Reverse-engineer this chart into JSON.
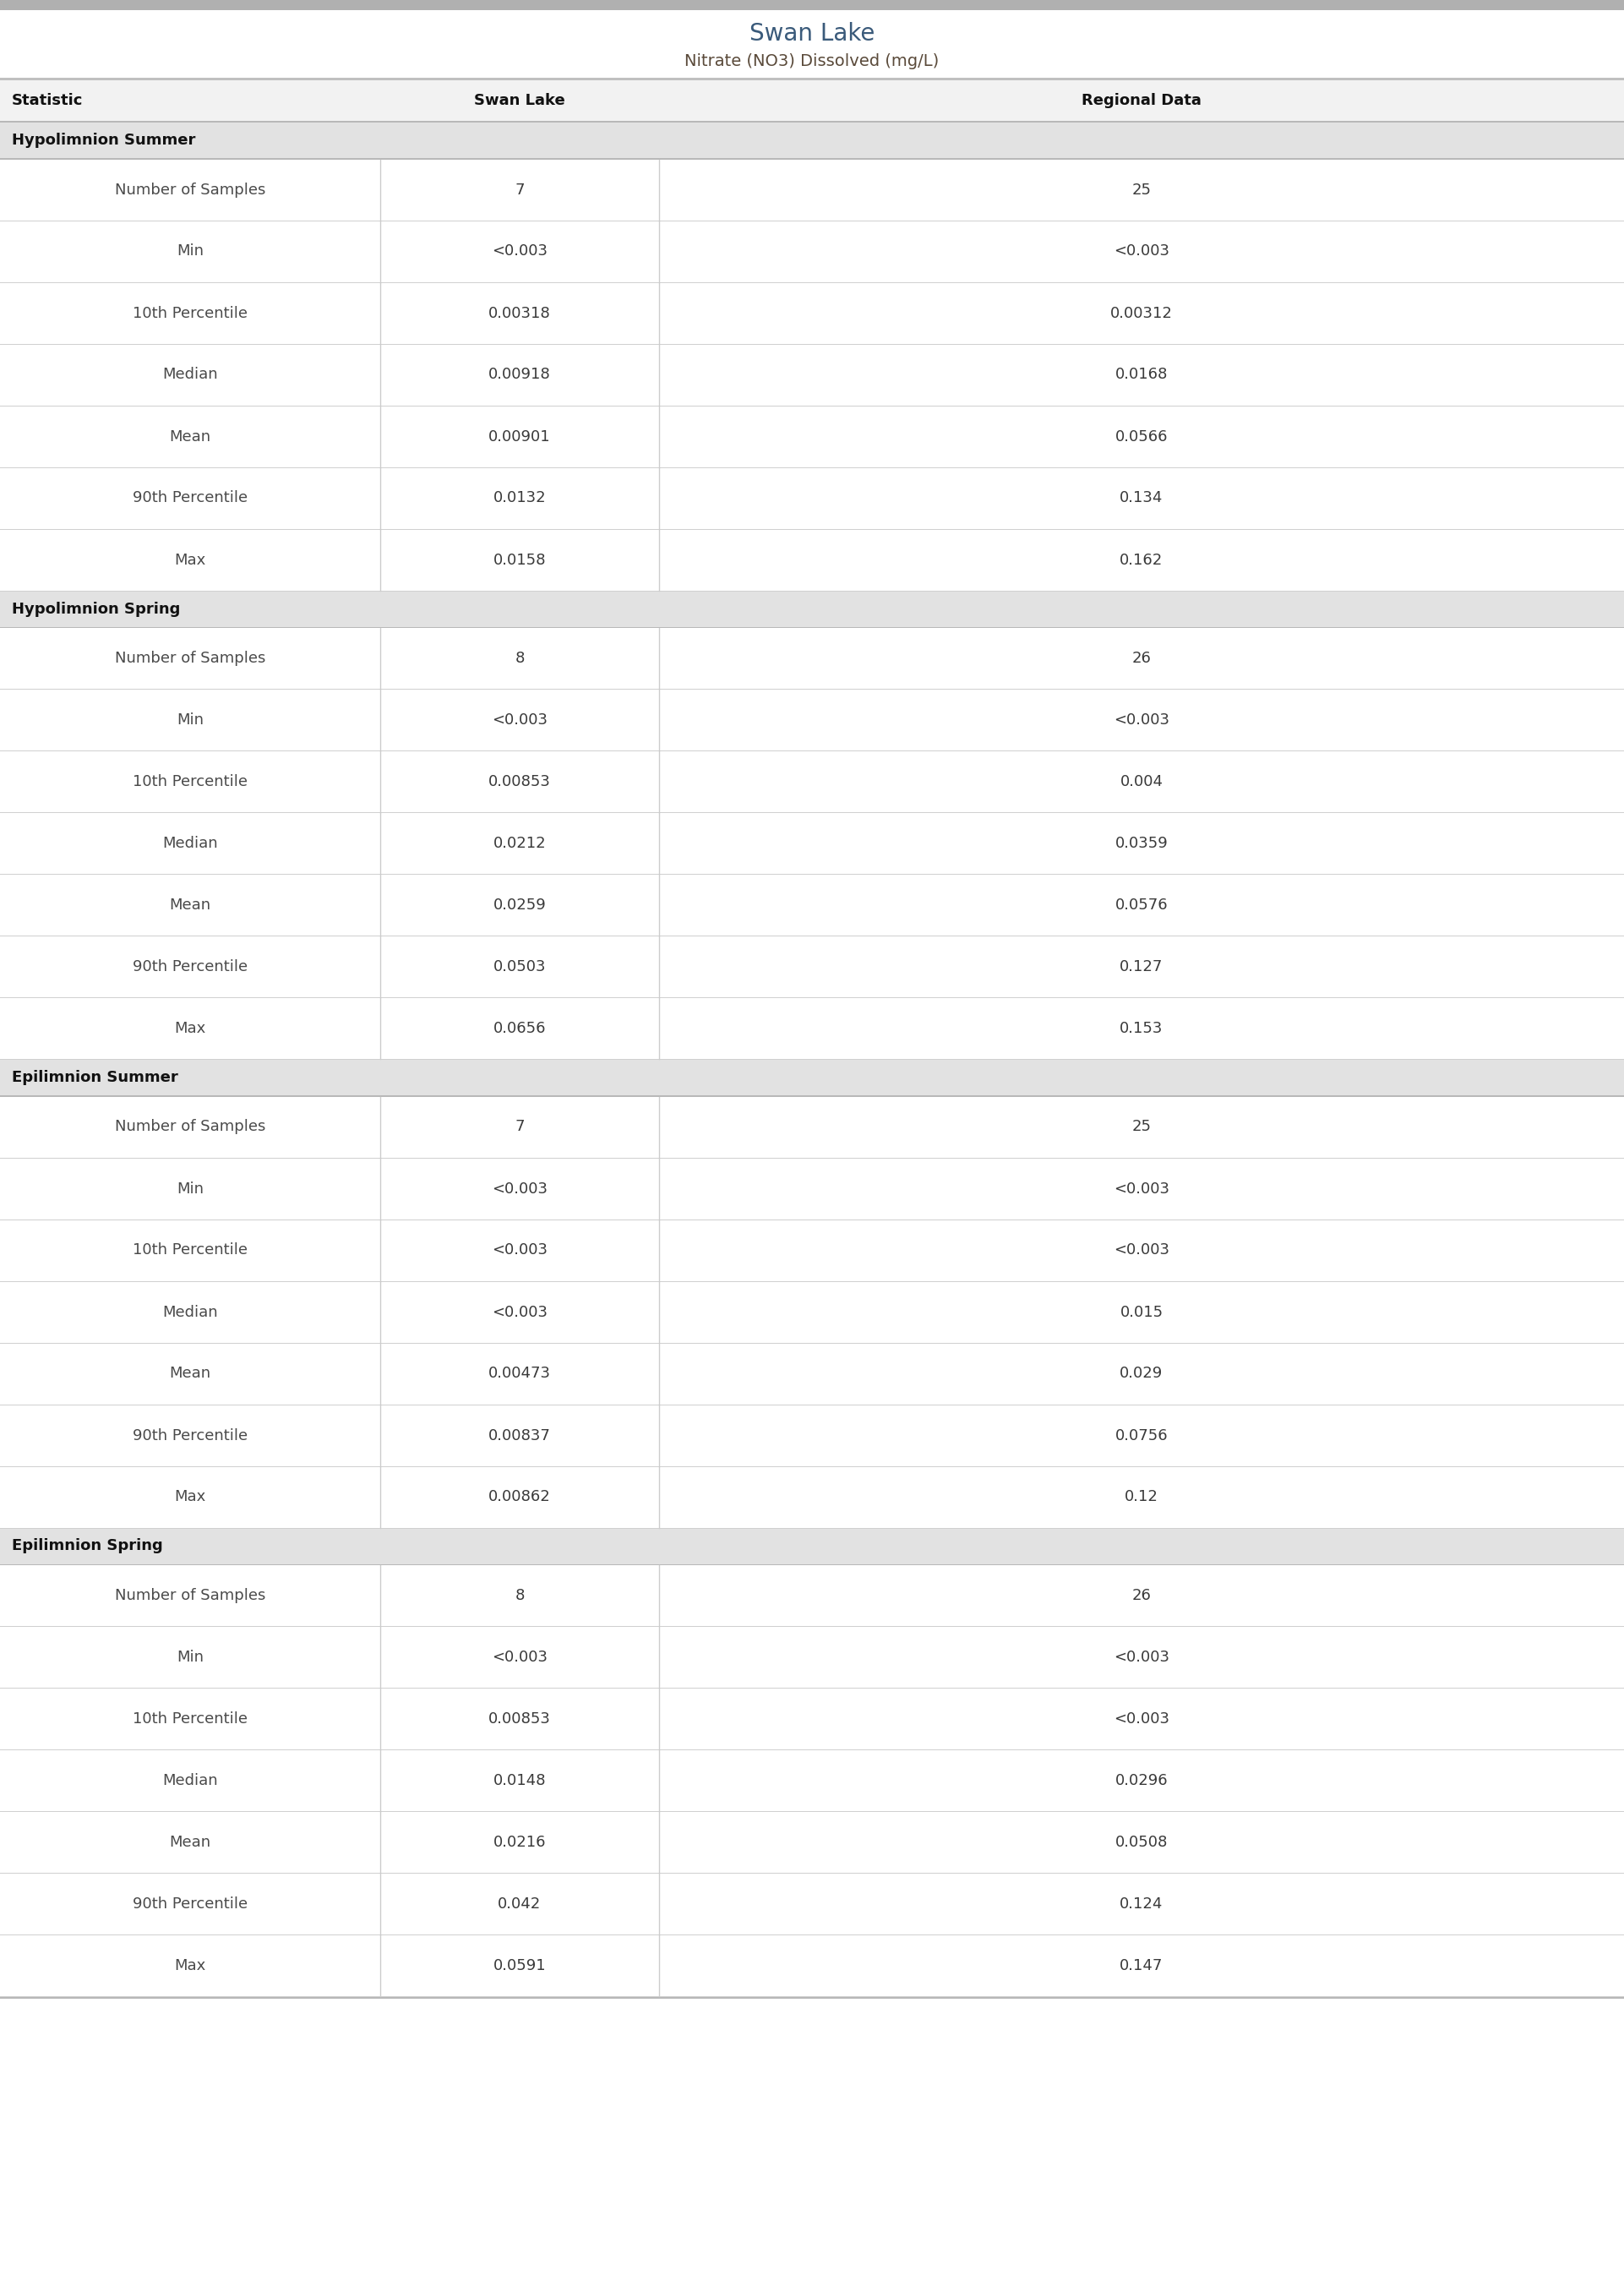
{
  "title": "Swan Lake",
  "subtitle": "Nitrate (NO3) Dissolved (mg/L)",
  "col_headers": [
    "Statistic",
    "Swan Lake",
    "Regional Data"
  ],
  "sections": [
    {
      "header": "Hypolimnion Summer",
      "rows": [
        [
          "Number of Samples",
          "7",
          "25"
        ],
        [
          "Min",
          "<0.003",
          "<0.003"
        ],
        [
          "10th Percentile",
          "0.00318",
          "0.00312"
        ],
        [
          "Median",
          "0.00918",
          "0.0168"
        ],
        [
          "Mean",
          "0.00901",
          "0.0566"
        ],
        [
          "90th Percentile",
          "0.0132",
          "0.134"
        ],
        [
          "Max",
          "0.0158",
          "0.162"
        ]
      ]
    },
    {
      "header": "Hypolimnion Spring",
      "rows": [
        [
          "Number of Samples",
          "8",
          "26"
        ],
        [
          "Min",
          "<0.003",
          "<0.003"
        ],
        [
          "10th Percentile",
          "0.00853",
          "0.004"
        ],
        [
          "Median",
          "0.0212",
          "0.0359"
        ],
        [
          "Mean",
          "0.0259",
          "0.0576"
        ],
        [
          "90th Percentile",
          "0.0503",
          "0.127"
        ],
        [
          "Max",
          "0.0656",
          "0.153"
        ]
      ]
    },
    {
      "header": "Epilimnion Summer",
      "rows": [
        [
          "Number of Samples",
          "7",
          "25"
        ],
        [
          "Min",
          "<0.003",
          "<0.003"
        ],
        [
          "10th Percentile",
          "<0.003",
          "<0.003"
        ],
        [
          "Median",
          "<0.003",
          "0.015"
        ],
        [
          "Mean",
          "0.00473",
          "0.029"
        ],
        [
          "90th Percentile",
          "0.00837",
          "0.0756"
        ],
        [
          "Max",
          "0.00862",
          "0.12"
        ]
      ]
    },
    {
      "header": "Epilimnion Spring",
      "rows": [
        [
          "Number of Samples",
          "8",
          "26"
        ],
        [
          "Min",
          "<0.003",
          "<0.003"
        ],
        [
          "10th Percentile",
          "0.00853",
          "<0.003"
        ],
        [
          "Median",
          "0.0148",
          "0.0296"
        ],
        [
          "Mean",
          "0.0216",
          "0.0508"
        ],
        [
          "90th Percentile",
          "0.042",
          "0.124"
        ],
        [
          "Max",
          "0.0591",
          "0.147"
        ]
      ]
    }
  ],
  "title_color": "#3a5a7a",
  "subtitle_color": "#5a4a3a",
  "header_bg_color": "#e2e2e2",
  "header_text_color": "#111111",
  "col_header_text_color": "#111111",
  "data_text_color": "#3a3a3a",
  "statistic_text_color": "#4a4a4a",
  "row_bg_white": "#ffffff",
  "divider_color": "#d0d0d0",
  "top_bar_color": "#b0b0b0",
  "col_header_bg": "#f2f2f2",
  "title_fontsize": 20,
  "subtitle_fontsize": 14,
  "col_header_fontsize": 13,
  "section_header_fontsize": 13,
  "data_fontsize": 13
}
